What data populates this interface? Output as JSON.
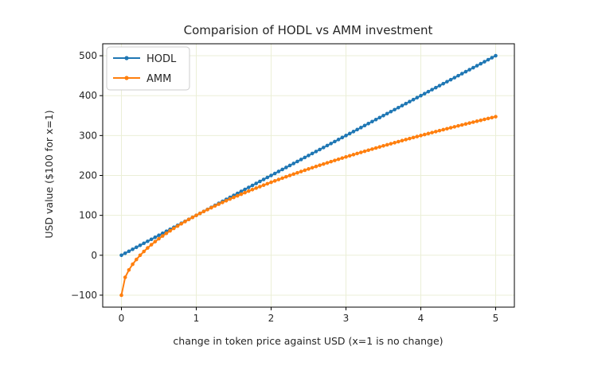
{
  "chart_data": {
    "type": "line",
    "title": "Comparision of HODL vs AMM investment",
    "xlabel": "change in token price against USD (x=1 is no change)",
    "ylabel": "USD value ($100 for x=1)",
    "xlim": [
      -0.25,
      5.25
    ],
    "ylim": [
      -130,
      530
    ],
    "x_ticks": [
      0,
      1,
      2,
      3,
      4,
      5
    ],
    "y_ticks": [
      -100,
      0,
      100,
      200,
      300,
      400,
      500
    ],
    "x_tick_labels": [
      "0",
      "1",
      "2",
      "3",
      "4",
      "5"
    ],
    "y_tick_labels": [
      "−100",
      "0",
      "100",
      "200",
      "300",
      "400",
      "500"
    ],
    "grid": true,
    "legend_position": "upper-left",
    "x_range": [
      0,
      5
    ],
    "n_points": 101,
    "series": [
      {
        "name": "HODL",
        "color": "#1f77b4",
        "marker": "dot",
        "formula": "100*x"
      },
      {
        "name": "AMM",
        "color": "#ff7f0e",
        "marker": "dot",
        "formula": "200*sqrt(x)-100"
      }
    ],
    "colors": {
      "grid": "#ebefd7",
      "frame": "#000000"
    }
  }
}
